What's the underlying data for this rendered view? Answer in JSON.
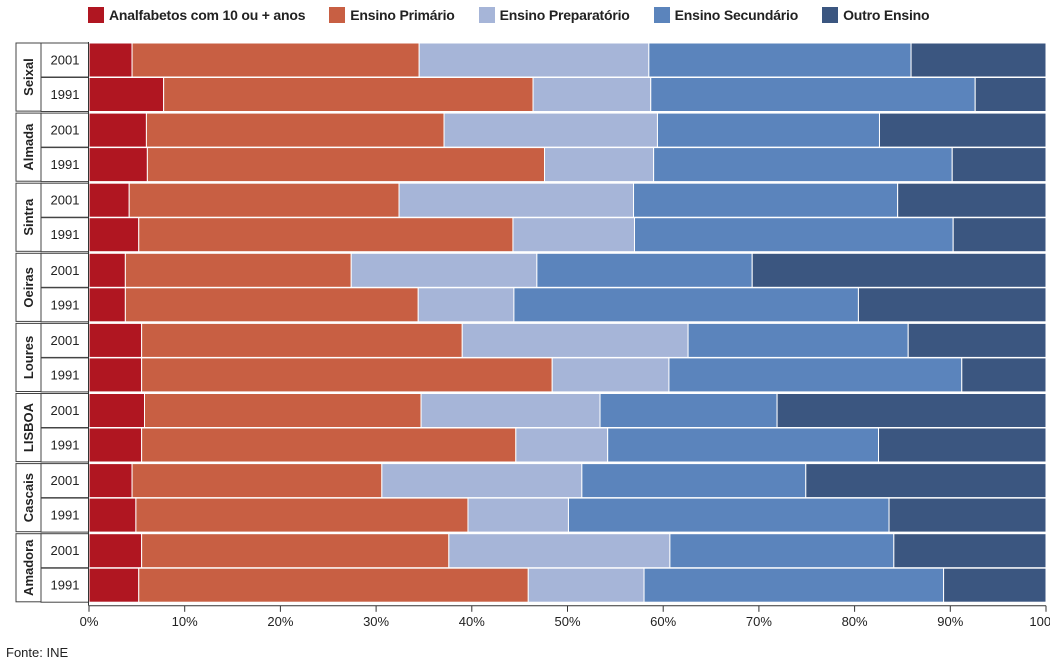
{
  "legend": [
    {
      "label": "Analfabetos com 10 ou + anos",
      "color": "#b01621"
    },
    {
      "label": "Ensino Primário",
      "color": "#c85f43"
    },
    {
      "label": "Ensino Preparatório",
      "color": "#a6b5d8"
    },
    {
      "label": "Ensino Secundário",
      "color": "#5b84bc"
    },
    {
      "label": "Outro Ensino",
      "color": "#3b5680"
    }
  ],
  "source": "Fonte: INE",
  "chart_data": {
    "type": "bar",
    "orientation": "horizontal",
    "stacked": true,
    "normalized": "percent",
    "xlim": [
      0,
      100
    ],
    "xticks": [
      "0%",
      "10%",
      "20%",
      "30%",
      "40%",
      "50%",
      "60%",
      "70%",
      "80%",
      "90%",
      "100%"
    ],
    "groups": [
      {
        "name": "Seixal",
        "rows": [
          {
            "year": "2001",
            "values": [
              4.5,
              30.0,
              24.0,
              27.4,
              14.1
            ]
          },
          {
            "year": "1991",
            "values": [
              7.8,
              38.6,
              12.3,
              33.9,
              7.4
            ]
          }
        ]
      },
      {
        "name": "Almada",
        "rows": [
          {
            "year": "2001",
            "values": [
              6.0,
              31.1,
              22.3,
              23.2,
              17.4
            ]
          },
          {
            "year": "1991",
            "values": [
              6.1,
              41.5,
              11.4,
              31.2,
              9.8
            ]
          }
        ]
      },
      {
        "name": "Sintra",
        "rows": [
          {
            "year": "2001",
            "values": [
              4.2,
              28.2,
              24.5,
              27.6,
              15.5
            ]
          },
          {
            "year": "1991",
            "values": [
              5.2,
              39.1,
              12.7,
              33.3,
              9.7
            ]
          }
        ]
      },
      {
        "name": "Oeiras",
        "rows": [
          {
            "year": "2001",
            "values": [
              3.8,
              23.6,
              19.4,
              22.5,
              30.7
            ]
          },
          {
            "year": "1991",
            "values": [
              3.8,
              30.6,
              10.0,
              36.0,
              19.6
            ]
          }
        ]
      },
      {
        "name": "Loures",
        "rows": [
          {
            "year": "2001",
            "values": [
              5.5,
              33.5,
              23.6,
              23.0,
              14.4
            ]
          },
          {
            "year": "1991",
            "values": [
              5.5,
              42.9,
              12.2,
              30.6,
              8.8
            ]
          }
        ]
      },
      {
        "name": "LISBOA",
        "rows": [
          {
            "year": "2001",
            "values": [
              5.8,
              28.9,
              18.7,
              18.5,
              28.1
            ]
          },
          {
            "year": "1991",
            "values": [
              5.5,
              39.1,
              9.6,
              28.3,
              17.5
            ]
          }
        ]
      },
      {
        "name": "Cascais",
        "rows": [
          {
            "year": "2001",
            "values": [
              4.5,
              26.1,
              20.9,
              23.4,
              25.1
            ]
          },
          {
            "year": "1991",
            "values": [
              4.9,
              34.7,
              10.5,
              33.5,
              16.4
            ]
          }
        ]
      },
      {
        "name": "Amadora",
        "rows": [
          {
            "year": "2001",
            "values": [
              5.5,
              32.1,
              23.1,
              23.4,
              15.9
            ]
          },
          {
            "year": "1991",
            "values": [
              5.2,
              40.7,
              12.1,
              31.3,
              10.7
            ]
          }
        ]
      }
    ]
  }
}
